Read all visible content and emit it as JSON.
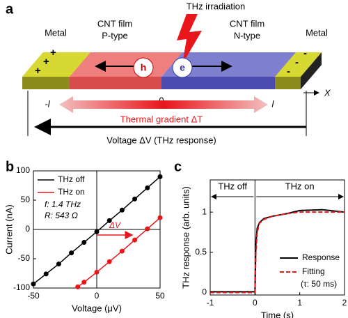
{
  "diagram": {
    "panel": "a",
    "metal_left": "Metal",
    "metal_right": "Metal",
    "p_film": "CNT film",
    "p_type": "P-type",
    "n_film": "CNT film",
    "n_type": "N-type",
    "irradiation": "THz irradiation",
    "hole": "h",
    "electron": "e",
    "plus_signs": [
      "+",
      "+",
      "+"
    ],
    "minus_signs": [
      "-",
      "-",
      "-"
    ],
    "axis": "X",
    "pos_left": "-l",
    "pos_zero": "0",
    "pos_right": "l",
    "gradient": "Thermal gradient ΔT",
    "voltage": "Voltage ΔV (THz response)"
  },
  "chart_data": [
    {
      "type": "line",
      "panel": "b",
      "x_label": "Voltage (μV)",
      "y_label": "Current (nA)",
      "xlim": [
        -50,
        50
      ],
      "xticks": [
        -50,
        0,
        50
      ],
      "ylim": [
        -100,
        100
      ],
      "yticks": [
        -100,
        -50,
        0,
        50,
        100
      ],
      "markers": true,
      "series": [
        {
          "name": "THz off",
          "color": "#000000",
          "x": [
            -50,
            -40,
            -30,
            -20,
            -10,
            0,
            10,
            20,
            30,
            40,
            50
          ],
          "values": [
            -93,
            -76,
            -59,
            -40,
            -22,
            -4,
            15,
            33,
            52,
            71,
            90
          ]
        },
        {
          "name": "THz on",
          "color": "#e8161b",
          "x": [
            -15,
            -10,
            0,
            10,
            20,
            30,
            40,
            50
          ],
          "values": [
            -98,
            -90,
            -73,
            -55,
            -37,
            -18,
            1,
            20
          ]
        }
      ],
      "notes": [
        "f: 1.4 THz",
        "R: 543 Ω"
      ],
      "shift_label": "ΔV"
    },
    {
      "type": "line",
      "panel": "c",
      "x_label": "Time (s)",
      "y_label": "THz response (arb. units)",
      "xlim": [
        -1,
        2
      ],
      "xticks": [
        -1,
        0,
        1,
        2
      ],
      "ylim": [
        -0.03,
        1.4
      ],
      "yticks": [
        0,
        0.5,
        1
      ],
      "markers": false,
      "series": [
        {
          "name": "Response",
          "color": "#000000",
          "dash": false,
          "x": [
            -1,
            -0.5,
            -0.01,
            0,
            0.02,
            0.05,
            0.1,
            0.2,
            0.4,
            0.7,
            1,
            1.5,
            2
          ],
          "values": [
            0.01,
            0.01,
            0.01,
            0,
            0.6,
            0.8,
            0.87,
            0.92,
            0.95,
            0.98,
            1.02,
            1.03,
            1.0
          ]
        },
        {
          "name": "Fitting",
          "color": "#e8161b",
          "dash": true,
          "x": [
            -1,
            -0.5,
            -0.01,
            0,
            0.02,
            0.05,
            0.1,
            0.2,
            0.4,
            0.7,
            1,
            1.5,
            2
          ],
          "values": [
            0,
            0,
            0,
            0,
            0.5,
            0.75,
            0.86,
            0.91,
            0.95,
            0.98,
            1.0,
            1.0,
            1.0
          ]
        }
      ],
      "regions": [
        "THz off",
        "THz on"
      ],
      "fit_note": "(τ: 50 ms)"
    }
  ]
}
